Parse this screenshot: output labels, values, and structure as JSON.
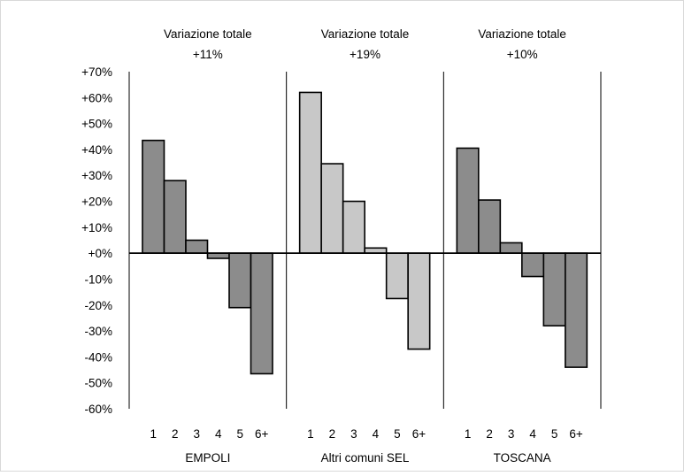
{
  "chart_data": {
    "type": "bar",
    "title": "",
    "ylabel": "",
    "ylim": [
      -60,
      70
    ],
    "y_ticks": [
      "-60%",
      "-50%",
      "-40%",
      "-30%",
      "-20%",
      "-10%",
      "+0%",
      "+10%",
      "+20%",
      "+30%",
      "+40%",
      "+50%",
      "+60%",
      "+70%"
    ],
    "y_tick_values": [
      -60,
      -50,
      -40,
      -30,
      -20,
      -10,
      0,
      10,
      20,
      30,
      40,
      50,
      60,
      70
    ],
    "grid": false,
    "categories": [
      "1",
      "2",
      "3",
      "4",
      "5",
      "6+"
    ],
    "panels": [
      {
        "name": "EMPOLI",
        "header_line1": "Variazione totale",
        "header_line2": "+11%",
        "color": "#8c8c8c",
        "values": [
          43.5,
          28,
          5,
          -2,
          -21,
          -46.5
        ]
      },
      {
        "name": "Altri comuni SEL",
        "header_line1": "Variazione totale",
        "header_line2": "+19%",
        "color": "#c8c8c8",
        "values": [
          62,
          34.5,
          20,
          2,
          -17.5,
          -37
        ]
      },
      {
        "name": "TOSCANA",
        "header_line1": "Variazione totale",
        "header_line2": "+10%",
        "color": "#8c8c8c",
        "values": [
          40.5,
          20.5,
          4,
          -9,
          -28,
          -44
        ]
      }
    ]
  }
}
